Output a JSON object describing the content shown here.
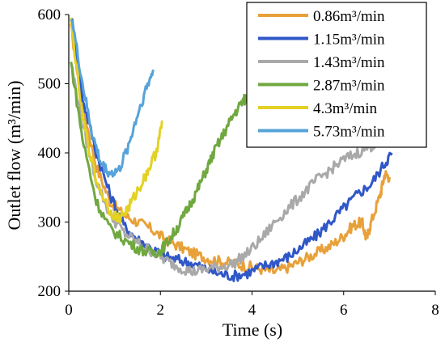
{
  "chart_data": {
    "type": "line",
    "title": "",
    "xlabel": "Time (s)",
    "ylabel": "Outlet flow (m³/min)",
    "xlim": [
      0,
      8
    ],
    "ylim": [
      200,
      600
    ],
    "xticks": [
      "0",
      "2",
      "4",
      "6",
      "8"
    ],
    "yticks": [
      "200",
      "300",
      "400",
      "500",
      "600"
    ],
    "grid": false,
    "legend_position": "top-right",
    "series": [
      {
        "name": "0.86m³/min",
        "color": "#e8a13a",
        "points": [
          [
            0.05,
            580
          ],
          [
            0.3,
            470
          ],
          [
            0.6,
            380
          ],
          [
            0.9,
            330
          ],
          [
            1.2,
            310
          ],
          [
            1.5,
            300
          ],
          [
            1.8,
            290
          ],
          [
            2.1,
            275
          ],
          [
            2.4,
            265
          ],
          [
            2.7,
            255
          ],
          [
            3.0,
            248
          ],
          [
            3.3,
            243
          ],
          [
            3.6,
            240
          ],
          [
            3.9,
            236
          ],
          [
            4.2,
            232
          ],
          [
            4.5,
            228
          ],
          [
            4.8,
            235
          ],
          [
            5.1,
            245
          ],
          [
            5.4,
            255
          ],
          [
            5.7,
            265
          ],
          [
            6.0,
            280
          ],
          [
            6.2,
            295
          ],
          [
            6.4,
            300
          ],
          [
            6.5,
            275
          ],
          [
            6.6,
            300
          ],
          [
            6.8,
            340
          ],
          [
            6.9,
            370
          ],
          [
            7.0,
            365
          ]
        ]
      },
      {
        "name": "1.15m³/min",
        "color": "#3057c8",
        "points": [
          [
            0.05,
            600
          ],
          [
            0.3,
            480
          ],
          [
            0.6,
            400
          ],
          [
            0.9,
            340
          ],
          [
            1.2,
            295
          ],
          [
            1.5,
            275
          ],
          [
            1.8,
            262
          ],
          [
            2.1,
            250
          ],
          [
            2.4,
            245
          ],
          [
            2.7,
            240
          ],
          [
            3.0,
            232
          ],
          [
            3.3,
            225
          ],
          [
            3.6,
            222
          ],
          [
            3.9,
            226
          ],
          [
            4.2,
            235
          ],
          [
            4.5,
            242
          ],
          [
            4.8,
            250
          ],
          [
            5.1,
            265
          ],
          [
            5.4,
            280
          ],
          [
            5.7,
            300
          ],
          [
            6.0,
            320
          ],
          [
            6.3,
            340
          ],
          [
            6.6,
            355
          ],
          [
            6.9,
            385
          ],
          [
            7.05,
            400
          ]
        ]
      },
      {
        "name": "1.43m³/min",
        "color": "#a9a9a9",
        "points": [
          [
            0.05,
            530
          ],
          [
            0.3,
            440
          ],
          [
            0.6,
            360
          ],
          [
            0.9,
            310
          ],
          [
            1.2,
            285
          ],
          [
            1.5,
            270
          ],
          [
            1.8,
            258
          ],
          [
            2.1,
            245
          ],
          [
            2.4,
            235
          ],
          [
            2.7,
            228
          ],
          [
            3.0,
            232
          ],
          [
            3.3,
            235
          ],
          [
            3.6,
            240
          ],
          [
            3.9,
            255
          ],
          [
            4.2,
            275
          ],
          [
            4.5,
            300
          ],
          [
            4.8,
            320
          ],
          [
            5.1,
            340
          ],
          [
            5.4,
            360
          ],
          [
            5.7,
            375
          ],
          [
            6.0,
            390
          ],
          [
            6.3,
            400
          ],
          [
            6.6,
            410
          ],
          [
            6.9,
            420
          ],
          [
            7.0,
            415
          ]
        ]
      },
      {
        "name": "2.87m³/min",
        "color": "#70a840",
        "points": [
          [
            0.05,
            530
          ],
          [
            0.3,
            420
          ],
          [
            0.6,
            330
          ],
          [
            0.9,
            290
          ],
          [
            1.2,
            275
          ],
          [
            1.5,
            262
          ],
          [
            1.8,
            255
          ],
          [
            2.0,
            258
          ],
          [
            2.2,
            275
          ],
          [
            2.4,
            295
          ],
          [
            2.6,
            320
          ],
          [
            2.8,
            345
          ],
          [
            3.0,
            375
          ],
          [
            3.2,
            405
          ],
          [
            3.4,
            430
          ],
          [
            3.6,
            455
          ],
          [
            3.8,
            475
          ],
          [
            3.9,
            480
          ]
        ]
      },
      {
        "name": "4.3m³/min",
        "color": "#e3d123",
        "points": [
          [
            0.05,
            590
          ],
          [
            0.3,
            450
          ],
          [
            0.6,
            360
          ],
          [
            0.9,
            315
          ],
          [
            1.1,
            305
          ],
          [
            1.3,
            320
          ],
          [
            1.5,
            345
          ],
          [
            1.7,
            370
          ],
          [
            1.9,
            400
          ],
          [
            2.05,
            445
          ]
        ]
      },
      {
        "name": "5.73m³/min",
        "color": "#56a3d9",
        "points": [
          [
            0.05,
            600
          ],
          [
            0.3,
            500
          ],
          [
            0.5,
            430
          ],
          [
            0.7,
            385
          ],
          [
            0.9,
            370
          ],
          [
            1.1,
            375
          ],
          [
            1.3,
            410
          ],
          [
            1.5,
            455
          ],
          [
            1.7,
            495
          ],
          [
            1.85,
            520
          ]
        ]
      }
    ]
  }
}
